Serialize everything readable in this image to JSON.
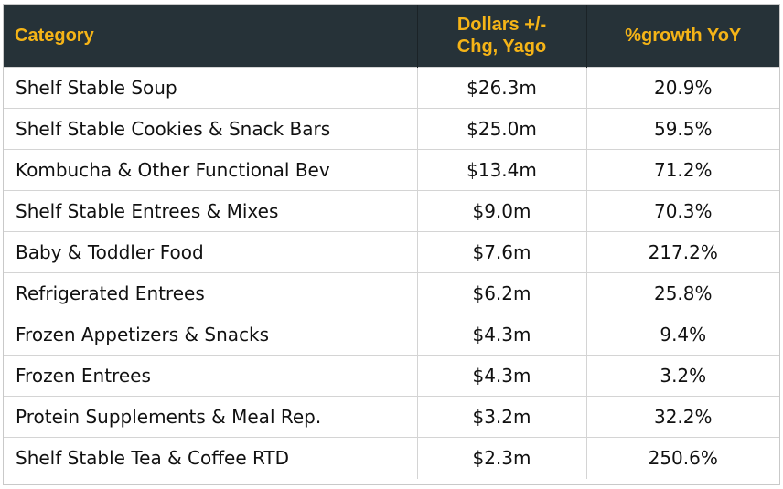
{
  "table": {
    "headers": {
      "category": "Category",
      "dollars_line1": "Dollars +/-",
      "dollars_line2": "Chg, Yago",
      "growth": "%growth YoY"
    },
    "rows": [
      {
        "category": "Shelf Stable Soup",
        "dollars": "$26.3m",
        "growth": "20.9%"
      },
      {
        "category": "Shelf Stable Cookies & Snack Bars",
        "dollars": "$25.0m",
        "growth": "59.5%"
      },
      {
        "category": "Kombucha & Other Functional Bev",
        "dollars": "$13.4m",
        "growth": "71.2%"
      },
      {
        "category": "Shelf Stable Entrees & Mixes",
        "dollars": "$9.0m",
        "growth": "70.3%"
      },
      {
        "category": "Baby & Toddler Food",
        "dollars": "$7.6m",
        "growth": "217.2%"
      },
      {
        "category": "Refrigerated Entrees",
        "dollars": "$6.2m",
        "growth": "25.8%"
      },
      {
        "category": "Frozen Appetizers & Snacks",
        "dollars": "$4.3m",
        "growth": "9.4%"
      },
      {
        "category": "Frozen Entrees",
        "dollars": "$4.3m",
        "growth": "3.2%"
      },
      {
        "category": "Protein Supplements & Meal Rep.",
        "dollars": "$3.2m",
        "growth": "32.2%"
      },
      {
        "category": "Shelf Stable Tea & Coffee RTD",
        "dollars": "$2.3m",
        "growth": "250.6%"
      }
    ]
  },
  "colors": {
    "header_background": "#263238",
    "header_text": "#f5b417",
    "grid_line": "#d4d4d4"
  }
}
